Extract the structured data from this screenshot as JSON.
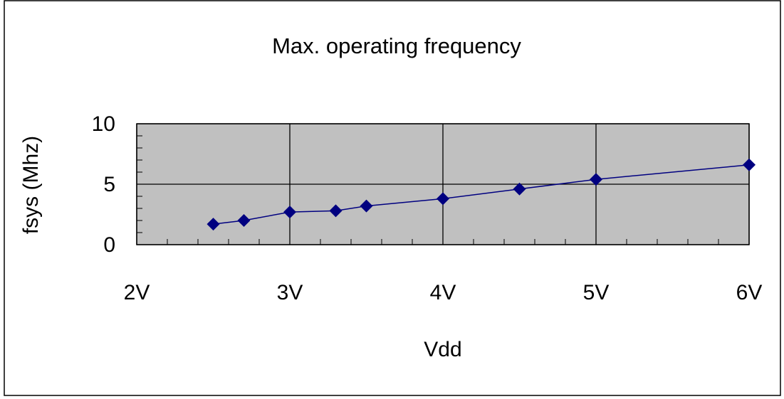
{
  "chart_data": {
    "type": "line",
    "title": "Max. operating frequency",
    "x_label": "Vdd",
    "y_label": "fsys (Mhz)",
    "x": [
      2.5,
      2.7,
      3.0,
      3.3,
      3.5,
      4.0,
      4.5,
      5.0,
      6.0
    ],
    "series": [
      {
        "color": "#000080",
        "values": [
          1.7,
          2.0,
          2.7,
          2.8,
          3.2,
          3.8,
          4.6,
          5.4,
          6.6
        ]
      }
    ],
    "xlim": [
      2,
      6
    ],
    "xticks": [
      {
        "value": 2,
        "label": "2V"
      },
      {
        "value": 3,
        "label": "3V"
      },
      {
        "value": 4,
        "label": "4V"
      },
      {
        "value": 5,
        "label": "5V"
      },
      {
        "value": 6,
        "label": "6V"
      }
    ],
    "ylim": [
      0,
      10
    ],
    "yticks": [
      0,
      5,
      10
    ],
    "grid": true,
    "background": "#c0c0c0"
  }
}
